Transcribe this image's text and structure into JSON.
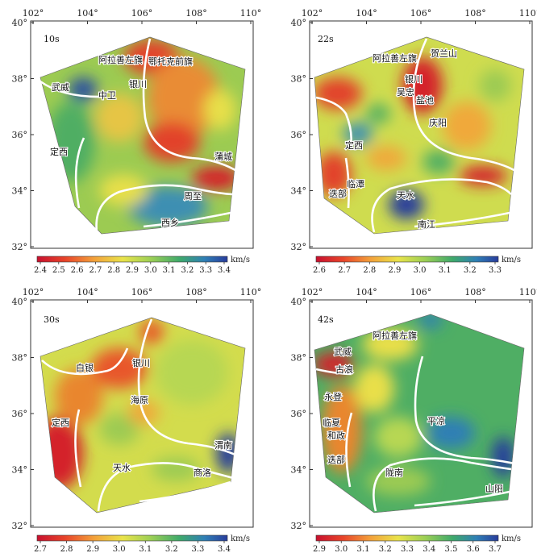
{
  "axes": {
    "lon_ticks": [
      "102°",
      "104°",
      "106°",
      "108°",
      "110°"
    ],
    "lat_ticks": [
      "40°",
      "38°",
      "36°",
      "34°",
      "32°"
    ]
  },
  "unit": "km/s",
  "panels": [
    {
      "period": "10s",
      "cities": [
        "阿拉善左旗",
        "鄂托克前旗",
        "武威",
        "中卫",
        "银川",
        "定西",
        "蒲城",
        "周至",
        "西乡"
      ],
      "colorbar_ticks": [
        "2.4",
        "2.5",
        "2.6",
        "2.7",
        "2.8",
        "2.9",
        "3.0",
        "3.1",
        "3.2",
        "3.3",
        "3.4"
      ]
    },
    {
      "period": "22s",
      "cities": [
        "阿拉善左旗",
        "贺兰山",
        "银川",
        "吴忠",
        "盐池",
        "庆阳",
        "定西",
        "临潭",
        "迭部",
        "天水",
        "南江"
      ],
      "colorbar_ticks": [
        "2.6",
        "2.7",
        "2.8",
        "2.9",
        "3.0",
        "3.1",
        "3.2",
        "3.3"
      ]
    },
    {
      "period": "30s",
      "cities": [
        "白银",
        "银川",
        "海原",
        "定西",
        "天水",
        "渭南",
        "商洛"
      ],
      "colorbar_ticks": [
        "2.7",
        "2.8",
        "2.9",
        "3.0",
        "3.1",
        "3.2",
        "3.3",
        "3.4"
      ]
    },
    {
      "period": "42s",
      "cities": [
        "阿拉善左旗",
        "武威",
        "古浪",
        "永登",
        "临夏",
        "和政",
        "迭部",
        "平凉",
        "陇南",
        "山阳"
      ],
      "colorbar_ticks": [
        "2.9",
        "3.0",
        "3.1",
        "3.2",
        "3.3",
        "3.4",
        "3.5",
        "3.6",
        "3.7"
      ]
    }
  ]
}
